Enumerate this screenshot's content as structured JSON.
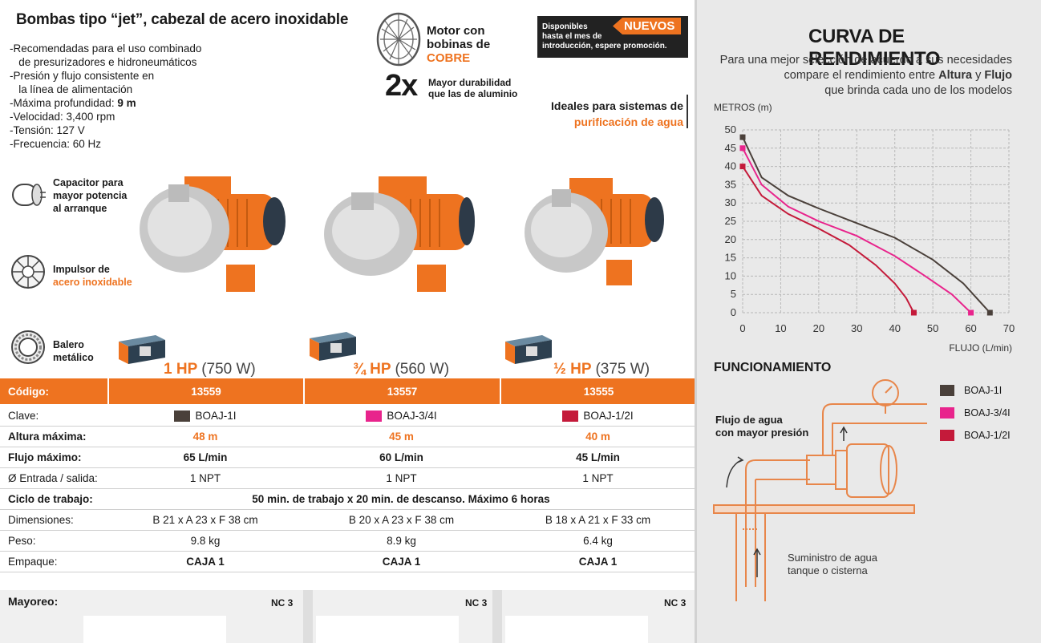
{
  "header": {
    "title": "Bombas tipo “jet”, cabezal de acero inoxidable",
    "features": [
      "-Recomendadas para el uso combinado",
      "  de presurizadores e hidroneumáticos",
      "-Presión y flujo consistente en",
      "  la línea de alimentación",
      "-Máxima profundidad: ",
      "-Velocidad: 3,400 rpm",
      "-Tensión: 127 V",
      "-Frecuencia: 60 Hz"
    ],
    "max_depth_value": "9 m"
  },
  "motor": {
    "line1": "Motor con",
    "line2": "bobinas de",
    "line3": "COBRE",
    "twox": "2x",
    "dur1": "Mayor durabilidad",
    "dur2": "que las de aluminio"
  },
  "promo": {
    "line1": "Disponibles",
    "line2": "hasta el mes de",
    "line3": "introducción, espere promoción.",
    "badge": "NUEVOS"
  },
  "ideales": {
    "line1": "Ideales para sistemas de",
    "line2": "purificación de agua"
  },
  "side_features": {
    "capacitor": [
      "Capacitor para",
      "mayor potencia",
      "al arranque"
    ],
    "impulsor": [
      "Impulsor de",
      "acero inoxidable"
    ],
    "balero": [
      "Balero",
      "metálico"
    ]
  },
  "products": [
    {
      "hp": "1 HP",
      "watts": "(750 W)",
      "codigo": "13559",
      "clave": "BOAJ-1I",
      "color": "#4a403a",
      "altura": "48 m",
      "flujo": "65 L/min",
      "entrada": "1 NPT",
      "dimensiones": "B 21 x A 23 x F 38 cm",
      "peso": "9.8 kg",
      "empaque": "CAJA 1",
      "mayoreo": "NC 3"
    },
    {
      "hp": "¾ HP",
      "watts": "(560 W)",
      "codigo": "13557",
      "clave": "BOAJ-3/4I",
      "color": "#e8248c",
      "altura": "45 m",
      "flujo": "60 L/min",
      "entrada": "1 NPT",
      "dimensiones": "B 20 x A 23 x F 38 cm",
      "peso": "8.9 kg",
      "empaque": "CAJA 1",
      "mayoreo": "NC 3"
    },
    {
      "hp": "½ HP",
      "watts": "(375 W)",
      "codigo": "13555",
      "clave": "BOAJ-1/2I",
      "color": "#c41a3a",
      "altura": "40 m",
      "flujo": "45 L/min",
      "entrada": "1 NPT",
      "dimensiones": "B 18 x A 21 x F 33 cm",
      "peso": "6.4 kg",
      "empaque": "CAJA 1",
      "mayoreo": "NC 3"
    }
  ],
  "table_labels": {
    "codigo": "Código:",
    "clave": "Clave:",
    "altura": "Altura máxima:",
    "flujo": "Flujo máximo:",
    "entrada": "Ø Entrada / salida:",
    "ciclo": "Ciclo de trabajo:",
    "ciclo_value": "50 min. de trabajo x 20 min. de descanso. Máximo 6 horas",
    "dimensiones": "Dimensiones:",
    "peso": "Peso:",
    "empaque": "Empaque:",
    "mayoreo": "Mayoreo:"
  },
  "curve": {
    "title": "CURVA DE RENDIMIENTO",
    "desc1": "Para una mejor selección de acuerdo a sus necesidades",
    "desc2a": "compare el rendimiento entre ",
    "desc2b": "Altura",
    "desc2c": " y ",
    "desc2d": "Flujo",
    "desc3": "que brinda cada uno de los modelos"
  },
  "chart_data": {
    "type": "line",
    "ylabel": "METROS (m)",
    "xlabel": "FLUJO (L/min)",
    "xlim": [
      0,
      70
    ],
    "ylim": [
      0,
      50
    ],
    "xticks": [
      0,
      10,
      20,
      30,
      40,
      50,
      60,
      70
    ],
    "yticks": [
      0,
      5,
      10,
      15,
      20,
      25,
      30,
      35,
      40,
      45,
      50
    ],
    "grid": true,
    "series": [
      {
        "name": "BOAJ-1I",
        "color": "#4a403a",
        "x": [
          0,
          5,
          12,
          20,
          30,
          40,
          50,
          58,
          65
        ],
        "y": [
          48,
          37,
          32,
          28.5,
          24.5,
          20.5,
          14.5,
          8,
          0
        ]
      },
      {
        "name": "BOAJ-3/4I",
        "color": "#e8248c",
        "x": [
          0,
          5,
          12,
          20,
          30,
          40,
          48,
          55,
          60
        ],
        "y": [
          45,
          35,
          29,
          25,
          21,
          15.5,
          10,
          5,
          0
        ]
      },
      {
        "name": "BOAJ-1/2I",
        "color": "#c41a3a",
        "x": [
          0,
          5,
          12,
          20,
          28,
          35,
          40,
          43,
          45
        ],
        "y": [
          40,
          32,
          27,
          23,
          18.5,
          13,
          8,
          4,
          0
        ]
      }
    ]
  },
  "funcionamiento": {
    "title": "FUNCIONAMIENTO",
    "flujo1": "Flujo de agua",
    "flujo2": "con mayor presión",
    "sumin1": "Suministro de agua",
    "sumin2": "tanque o cisterna"
  }
}
